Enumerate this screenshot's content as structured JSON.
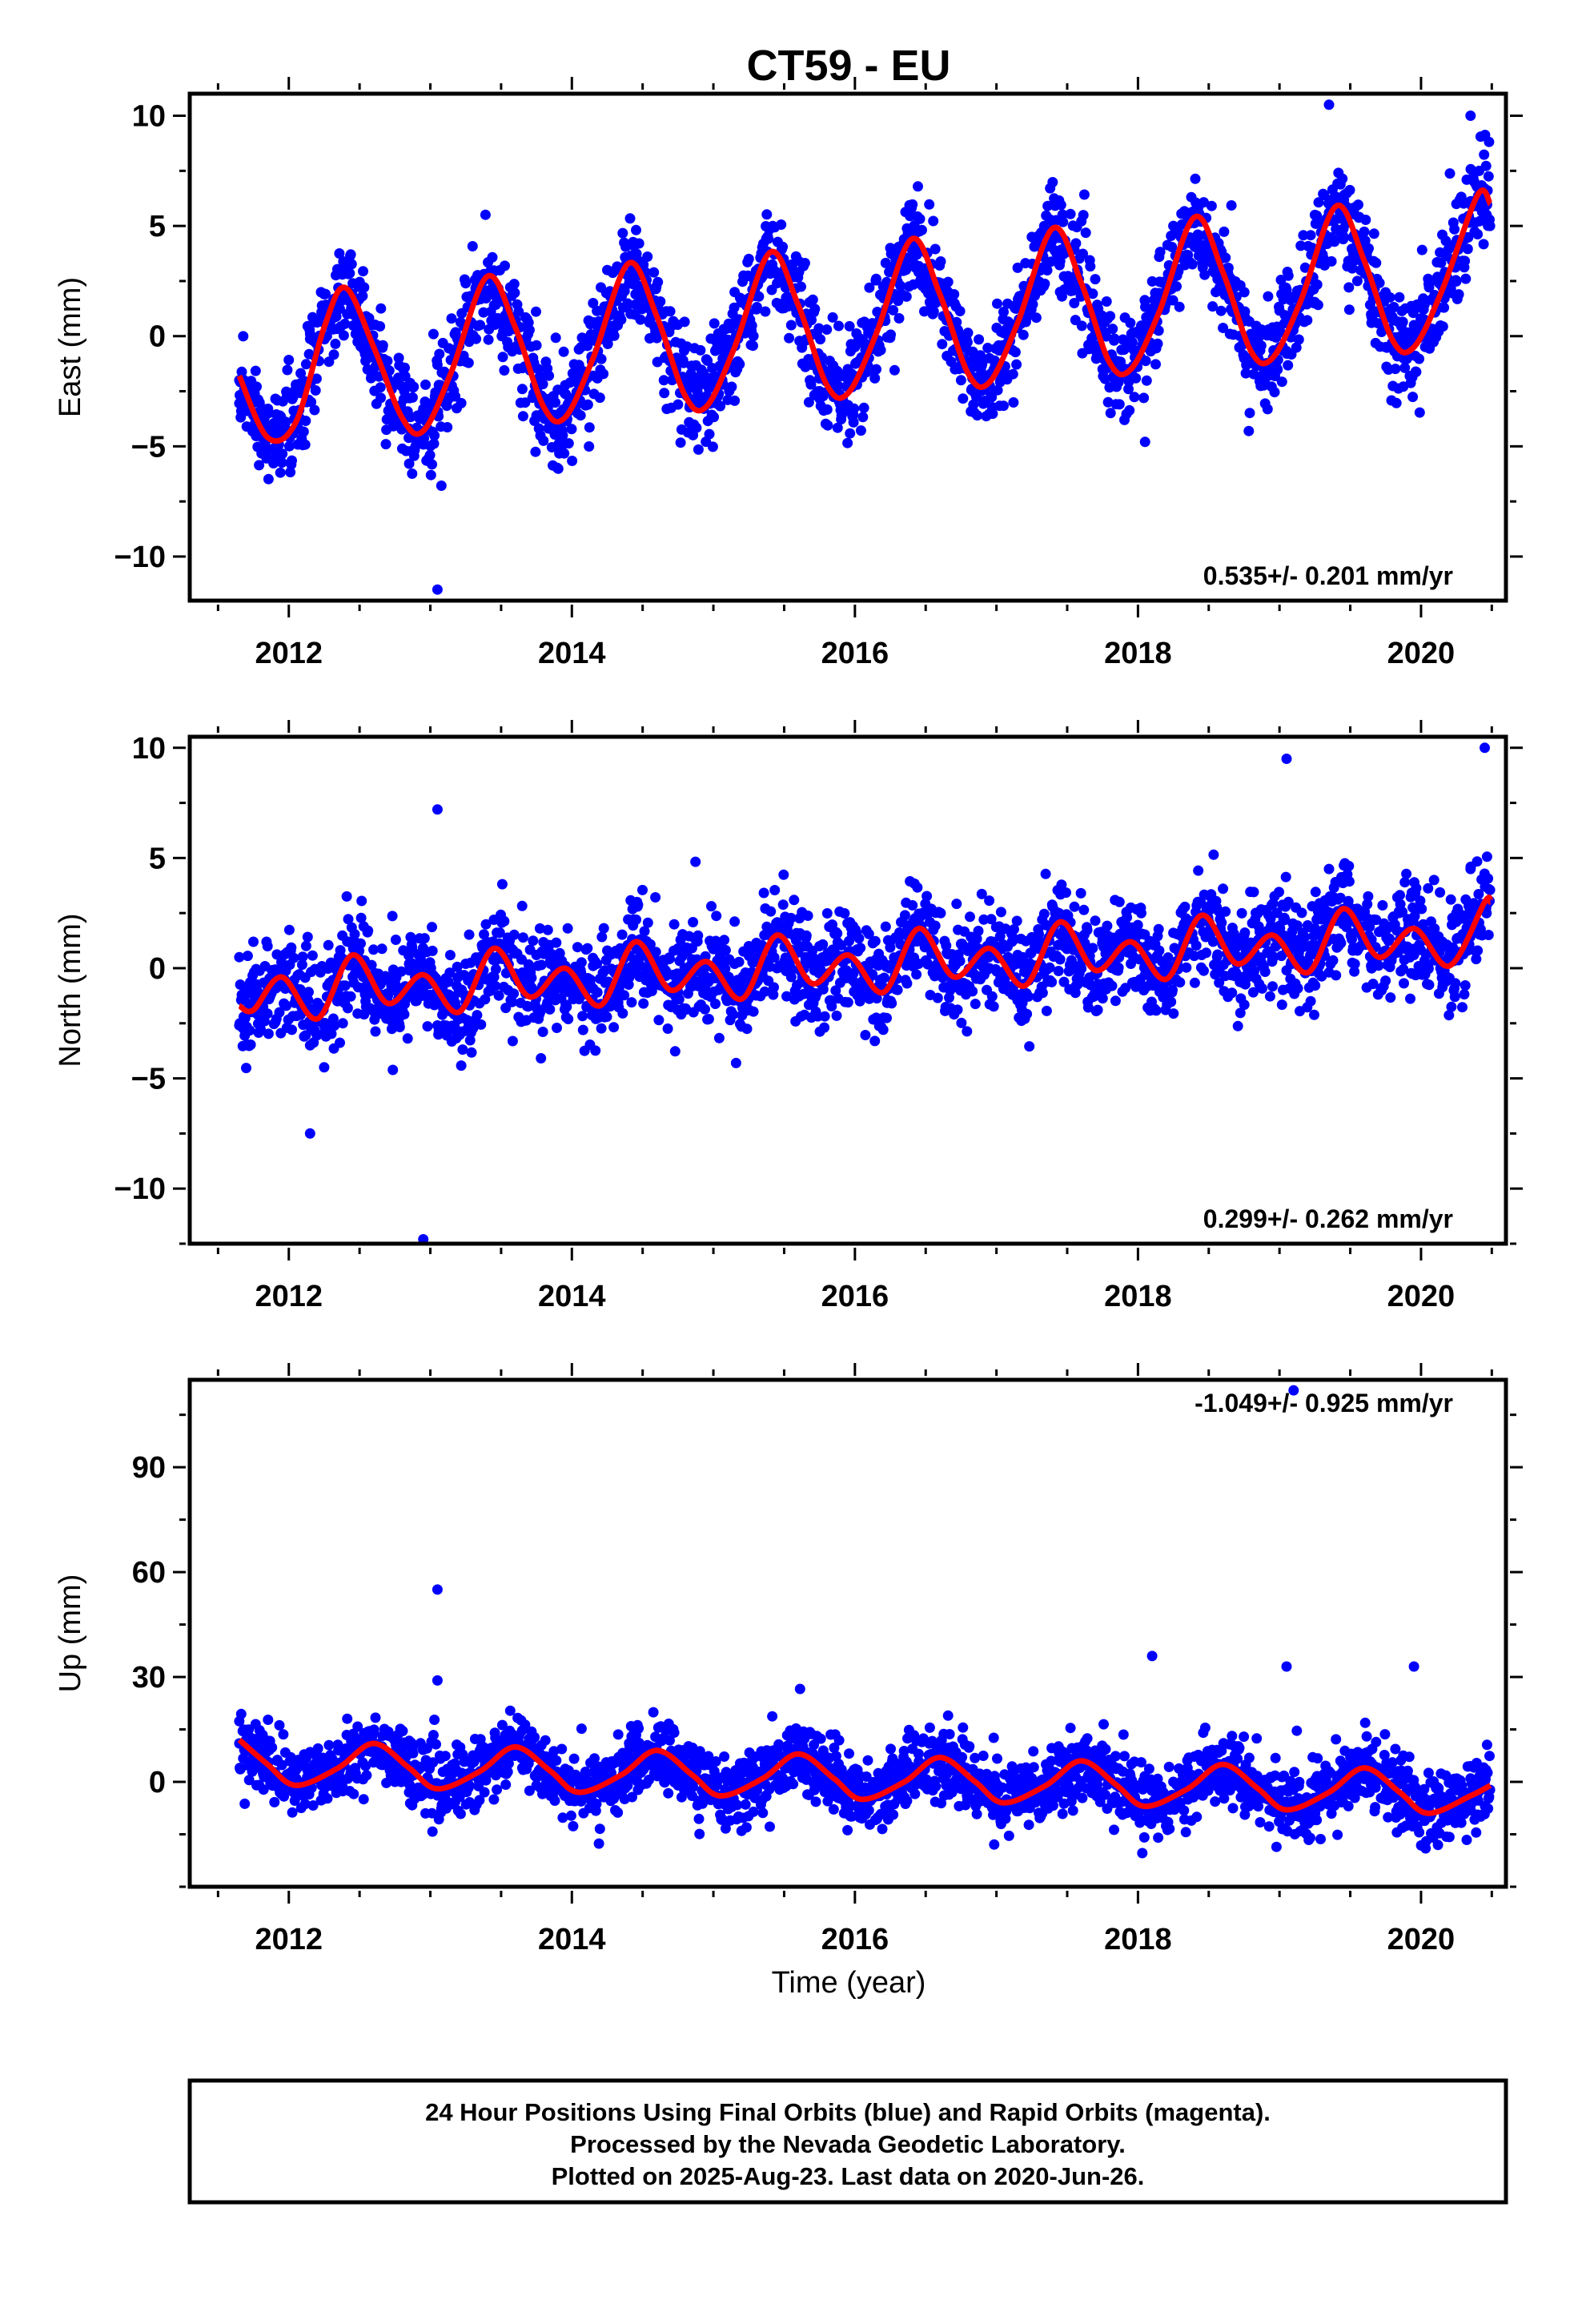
{
  "chart_data": [
    {
      "type": "scatter",
      "title": "CT59 - EU",
      "ylabel": "East (mm)",
      "xlabel": "",
      "xlim": [
        2011.3,
        2020.6
      ],
      "ylim": [
        -12,
        11
      ],
      "xticks": [
        2012,
        2014,
        2016,
        2018,
        2020
      ],
      "xtick_labels": [
        "2012",
        "2014",
        "2016",
        "2018",
        "2020"
      ],
      "yticks": [
        -10,
        -5,
        0,
        5,
        10
      ],
      "ytick_labels": [
        "−10",
        "−5",
        "0",
        "5",
        "10"
      ],
      "annotation": "0.535+/- 0.201 mm/yr",
      "data_range": [
        2011.65,
        2020.49
      ],
      "series": [
        {
          "kind": "points",
          "color": "#0000ff",
          "x": [
            2011.65,
            2011.75,
            2011.85,
            2011.95,
            2012.05,
            2012.15,
            2012.25,
            2012.35,
            2012.45,
            2012.55,
            2012.65,
            2012.75,
            2012.85,
            2012.95,
            2013.05,
            2013.15,
            2013.25,
            2013.35,
            2013.45,
            2013.55,
            2013.65,
            2013.75,
            2013.85,
            2013.95,
            2014.05,
            2014.15,
            2014.25,
            2014.35,
            2014.45,
            2014.55,
            2014.65,
            2014.75,
            2014.85,
            2014.95,
            2015.05,
            2015.15,
            2015.25,
            2015.35,
            2015.45,
            2015.55,
            2015.65,
            2015.75,
            2015.85,
            2015.95,
            2016.05,
            2016.15,
            2016.25,
            2016.35,
            2016.45,
            2016.55,
            2016.65,
            2016.75,
            2016.85,
            2016.95,
            2017.05,
            2017.15,
            2017.25,
            2017.35,
            2017.45,
            2017.55,
            2017.65,
            2017.75,
            2017.85,
            2017.95,
            2018.05,
            2018.15,
            2018.25,
            2018.35,
            2018.45,
            2018.55,
            2018.65,
            2018.75,
            2018.85,
            2018.95,
            2019.05,
            2019.15,
            2019.25,
            2019.35,
            2019.45,
            2019.55,
            2019.65,
            2019.75,
            2019.85,
            2019.95,
            2020.05,
            2020.15,
            2020.25,
            2020.35,
            2020.45,
            2013.05,
            2018.05,
            2019.35,
            2020.35
          ],
          "y": [
            -2.0,
            -3.6,
            -4.4,
            -3.9,
            -2.2,
            0.1,
            1.9,
            2.2,
            1.2,
            -0.8,
            -2.8,
            -4.0,
            -4.2,
            -3.3,
            -1.3,
            0.8,
            2.4,
            2.6,
            1.4,
            -0.5,
            -2.4,
            -3.6,
            -3.6,
            -2.6,
            -0.6,
            1.5,
            3.0,
            3.1,
            1.9,
            -0.1,
            -2.0,
            -3.1,
            -3.1,
            -2.1,
            0.0,
            2.0,
            3.5,
            3.6,
            2.4,
            0.5,
            -1.4,
            -2.5,
            -2.5,
            -1.5,
            0.6,
            2.6,
            4.0,
            4.1,
            2.9,
            1.0,
            -0.9,
            -2.0,
            -2.0,
            -1.0,
            1.1,
            3.1,
            4.5,
            4.6,
            3.4,
            1.5,
            -0.4,
            -1.5,
            -1.5,
            -0.5,
            1.6,
            3.6,
            5.0,
            5.1,
            3.9,
            2.0,
            0.1,
            -1.0,
            -1.0,
            0.0,
            2.1,
            4.1,
            5.5,
            5.6,
            4.4,
            2.5,
            0.6,
            -0.5,
            -0.5,
            0.5,
            2.6,
            4.6,
            6.0,
            6.1,
            5.6,
            -11.5,
            -4.8,
            10.5,
            10.0
          ]
        },
        {
          "kind": "model",
          "color": "#ff0000",
          "x": [
            2011.65,
            2011.85,
            2012.05,
            2012.25,
            2012.4,
            2012.6,
            2012.8,
            2012.95,
            2013.15,
            2013.4,
            2013.6,
            2013.8,
            2013.95,
            2014.15,
            2014.4,
            2014.6,
            2014.8,
            2014.95,
            2015.15,
            2015.4,
            2015.6,
            2015.8,
            2015.95,
            2016.15,
            2016.4,
            2016.6,
            2016.8,
            2016.95,
            2017.15,
            2017.4,
            2017.6,
            2017.8,
            2017.95,
            2018.15,
            2018.4,
            2018.6,
            2018.8,
            2018.95,
            2019.15,
            2019.4,
            2019.6,
            2019.8,
            2019.95,
            2020.15,
            2020.4,
            2020.49
          ],
          "y": [
            -1.8,
            -4.6,
            -3.9,
            0.4,
            2.2,
            -0.5,
            -3.7,
            -4.3,
            -1.6,
            2.7,
            0.4,
            -3.2,
            -3.7,
            -1.0,
            3.3,
            0.9,
            -2.7,
            -3.2,
            -0.5,
            3.8,
            1.4,
            -2.2,
            -2.6,
            0.1,
            4.4,
            1.9,
            -1.7,
            -2.1,
            0.6,
            4.9,
            2.4,
            -1.2,
            -1.5,
            1.1,
            5.4,
            2.9,
            -0.7,
            -1.0,
            1.6,
            5.9,
            3.4,
            -0.2,
            -0.5,
            2.1,
            6.4,
            6.0
          ]
        }
      ]
    },
    {
      "type": "scatter",
      "title": "",
      "ylabel": "North (mm)",
      "xlabel": "",
      "xlim": [
        2011.3,
        2020.6
      ],
      "ylim": [
        -12.5,
        10.5
      ],
      "xticks": [
        2012,
        2014,
        2016,
        2018,
        2020
      ],
      "xtick_labels": [
        "2012",
        "2014",
        "2016",
        "2018",
        "2020"
      ],
      "yticks": [
        -10,
        -5,
        0,
        5,
        10
      ],
      "ytick_labels": [
        "−10",
        "−5",
        "0",
        "5",
        "10"
      ],
      "annotation": "0.299+/- 0.262 mm/yr",
      "data_range": [
        2011.65,
        2020.49
      ],
      "series": [
        {
          "kind": "points",
          "color": "#0000ff",
          "x": [
            2011.65,
            2011.75,
            2011.85,
            2011.95,
            2012.05,
            2012.15,
            2012.25,
            2012.35,
            2012.45,
            2012.55,
            2012.65,
            2012.75,
            2012.85,
            2012.95,
            2013.05,
            2013.15,
            2013.25,
            2013.35,
            2013.45,
            2013.55,
            2013.65,
            2013.75,
            2013.85,
            2013.95,
            2014.05,
            2014.15,
            2014.25,
            2014.35,
            2014.45,
            2014.55,
            2014.65,
            2014.75,
            2014.85,
            2014.95,
            2015.05,
            2015.15,
            2015.25,
            2015.35,
            2015.45,
            2015.55,
            2015.65,
            2015.75,
            2015.85,
            2015.95,
            2016.05,
            2016.15,
            2016.25,
            2016.35,
            2016.45,
            2016.55,
            2016.65,
            2016.75,
            2016.85,
            2016.95,
            2017.05,
            2017.15,
            2017.25,
            2017.35,
            2017.45,
            2017.55,
            2017.65,
            2017.75,
            2017.85,
            2017.95,
            2018.05,
            2018.15,
            2018.25,
            2018.35,
            2018.45,
            2018.55,
            2018.65,
            2018.75,
            2018.85,
            2018.95,
            2019.05,
            2019.15,
            2019.25,
            2019.35,
            2019.45,
            2019.55,
            2019.65,
            2019.75,
            2019.85,
            2019.95,
            2020.05,
            2020.15,
            2020.25,
            2020.35,
            2020.45,
            2012.95,
            2013.05,
            2012.15,
            2020.45,
            2019.05
          ],
          "y": [
            0.5,
            1.2,
            1.0,
            0.2,
            -1.0,
            -3.5,
            -4.5,
            -1.2,
            0.5,
            -0.5,
            -1.2,
            -0.6,
            0.2,
            -0.3,
            -1.0,
            -1.5,
            0.2,
            0.5,
            -0.4,
            -1.0,
            -0.2,
            0.6,
            0.2,
            -0.6,
            -1.0,
            0.1,
            0.8,
            0.6,
            -0.2,
            -0.6,
            0.3,
            0.9,
            0.4,
            -0.4,
            -0.9,
            0.2,
            1.0,
            0.8,
            0.0,
            -0.4,
            0.5,
            1.0,
            0.6,
            -0.2,
            -0.7,
            0.4,
            1.2,
            1.0,
            0.2,
            -0.2,
            0.7,
            1.1,
            0.7,
            0.0,
            -0.5,
            0.6,
            1.4,
            1.2,
            0.4,
            0.0,
            0.9,
            1.3,
            0.9,
            0.2,
            -0.3,
            0.8,
            1.6,
            1.4,
            0.6,
            0.2,
            1.1,
            1.5,
            1.1,
            0.4,
            -0.1,
            1.0,
            1.8,
            4.5,
            2.0,
            0.8,
            1.3,
            1.7,
            1.3,
            0.6,
            0.1,
            1.2,
            2.5,
            4.5,
            4.0,
            -12.3,
            7.2,
            -7.5,
            10.0,
            9.5
          ]
        },
        {
          "kind": "model",
          "color": "#ff0000",
          "x": [
            2011.65,
            2011.75,
            2011.95,
            2012.2,
            2012.45,
            2012.7,
            2012.95,
            2013.2,
            2013.45,
            2013.7,
            2013.95,
            2014.2,
            2014.45,
            2014.7,
            2014.95,
            2015.2,
            2015.45,
            2015.7,
            2015.95,
            2016.2,
            2016.45,
            2016.7,
            2016.95,
            2017.2,
            2017.45,
            2017.7,
            2017.95,
            2018.2,
            2018.45,
            2018.7,
            2018.95,
            2019.2,
            2019.45,
            2019.7,
            2019.95,
            2020.2,
            2020.45,
            2020.49
          ],
          "y": [
            -1.7,
            -1.9,
            -0.4,
            -2.3,
            0.6,
            -1.6,
            -0.3,
            -2.0,
            0.9,
            -1.3,
            0.0,
            -1.7,
            1.2,
            -1.0,
            0.3,
            -1.4,
            1.5,
            -0.7,
            0.6,
            -1.1,
            1.8,
            -0.4,
            0.9,
            -0.8,
            2.1,
            -0.1,
            1.2,
            -0.5,
            2.4,
            0.2,
            1.5,
            -0.2,
            2.7,
            0.5,
            1.8,
            0.1,
            3.0,
            3.0
          ]
        }
      ]
    },
    {
      "type": "scatter",
      "title": "",
      "ylabel": "Up (mm)",
      "xlabel": "Time (year)",
      "xlim": [
        2011.3,
        2020.6
      ],
      "ylim": [
        -30,
        115
      ],
      "xticks": [
        2012,
        2014,
        2016,
        2018,
        2020
      ],
      "xtick_labels": [
        "2012",
        "2014",
        "2016",
        "2018",
        "2020"
      ],
      "yticks": [
        0,
        30,
        60,
        90
      ],
      "ytick_labels": [
        "0",
        "30",
        "60",
        "90"
      ],
      "annotation": "-1.049+/- 0.925 mm/yr",
      "data_range": [
        2011.65,
        2020.49
      ],
      "series": [
        {
          "kind": "points",
          "color": "#0000ff",
          "x": [
            2011.65,
            2011.75,
            2011.85,
            2011.95,
            2012.05,
            2012.15,
            2012.25,
            2012.35,
            2012.45,
            2012.55,
            2012.65,
            2012.75,
            2012.85,
            2012.95,
            2013.05,
            2013.15,
            2013.25,
            2013.35,
            2013.45,
            2013.55,
            2013.65,
            2013.75,
            2013.85,
            2013.95,
            2014.05,
            2014.15,
            2014.25,
            2014.35,
            2014.45,
            2014.55,
            2014.65,
            2014.75,
            2014.85,
            2014.95,
            2015.05,
            2015.15,
            2015.25,
            2015.35,
            2015.45,
            2015.55,
            2015.65,
            2015.75,
            2015.85,
            2015.95,
            2016.05,
            2016.15,
            2016.25,
            2016.35,
            2016.45,
            2016.55,
            2016.65,
            2016.75,
            2016.85,
            2016.95,
            2017.05,
            2017.15,
            2017.25,
            2017.35,
            2017.45,
            2017.55,
            2017.65,
            2017.75,
            2017.85,
            2017.95,
            2018.05,
            2018.15,
            2018.25,
            2018.35,
            2018.45,
            2018.55,
            2018.65,
            2018.75,
            2018.85,
            2018.95,
            2019.05,
            2019.15,
            2019.25,
            2019.35,
            2019.45,
            2019.55,
            2019.65,
            2019.75,
            2019.85,
            2019.95,
            2020.05,
            2020.15,
            2020.25,
            2020.35,
            2020.45,
            2013.05,
            2013.05,
            2018.1,
            2019.05,
            2019.95,
            2019.1
          ],
          "y": [
            11,
            7,
            2,
            -1,
            -1,
            1,
            5,
            9,
            11,
            9,
            5,
            0,
            -3,
            -3,
            -1,
            2,
            6,
            9,
            10,
            8,
            4,
            -1,
            -4,
            -4,
            -3,
            0,
            4,
            7,
            9,
            8,
            4,
            -1,
            -4,
            -5,
            -4,
            -1,
            3,
            7,
            9,
            8,
            4,
            -1,
            -4,
            -6,
            -5,
            -2,
            2,
            6,
            8,
            7,
            3,
            -2,
            -5,
            -6,
            -6,
            -3,
            1,
            5,
            7,
            6,
            2,
            -3,
            -6,
            -7,
            -7,
            -4,
            0,
            4,
            6,
            5,
            1,
            -4,
            -7,
            -8,
            -8,
            -5,
            -1,
            3,
            5,
            4,
            0,
            -5,
            -8,
            -9,
            -9,
            -6,
            -2,
            1,
            0,
            55,
            29,
            36,
            33,
            33,
            112
          ]
        },
        {
          "kind": "model",
          "color": "#ff0000",
          "x": [
            2011.65,
            2011.85,
            2012.05,
            2012.35,
            2012.6,
            2012.85,
            2013.05,
            2013.35,
            2013.6,
            2013.85,
            2014.05,
            2014.35,
            2014.6,
            2014.85,
            2015.05,
            2015.35,
            2015.6,
            2015.85,
            2016.05,
            2016.35,
            2016.6,
            2016.85,
            2017.05,
            2017.35,
            2017.6,
            2017.85,
            2018.05,
            2018.35,
            2018.6,
            2018.85,
            2019.05,
            2019.35,
            2019.6,
            2019.85,
            2020.05,
            2020.35,
            2020.49
          ],
          "y": [
            12,
            5,
            -1,
            4,
            11,
            4,
            -2,
            3,
            10,
            3,
            -3,
            2,
            9,
            2,
            -4,
            1,
            8,
            1,
            -5,
            0,
            7,
            0,
            -6,
            -1,
            6,
            -1,
            -7,
            -2,
            5,
            -2,
            -8,
            -3,
            4,
            -3,
            -9,
            -4,
            -1
          ]
        }
      ]
    }
  ],
  "footer": {
    "line1": "24 Hour Positions Using Final Orbits (blue) and Rapid Orbits (magenta).",
    "line2": "Processed by the Nevada Geodetic Laboratory.",
    "line3": "Plotted on 2025-Aug-23. Last data on 2020-Jun-26."
  }
}
